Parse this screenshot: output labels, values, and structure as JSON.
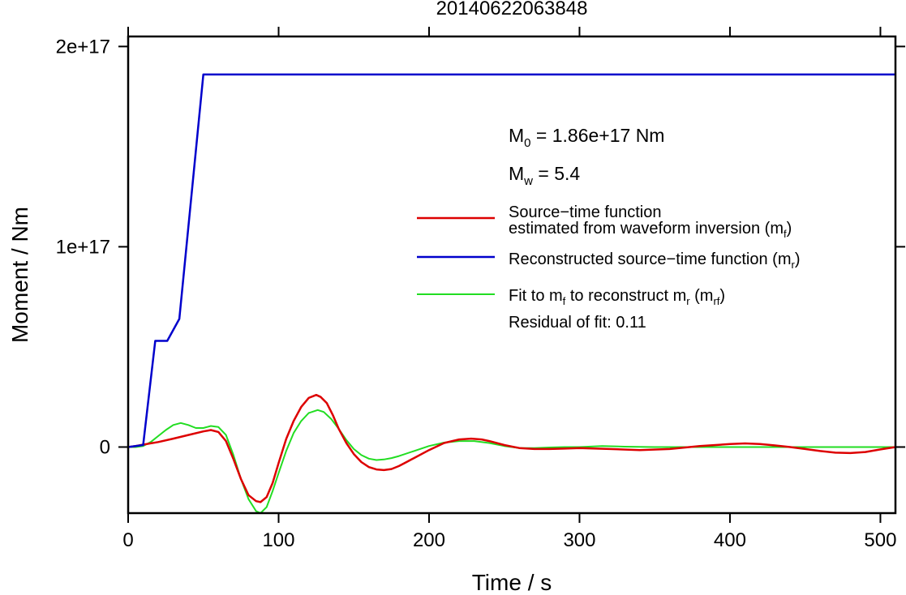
{
  "chart_data": {
    "type": "line",
    "title": "20140622063848",
    "xlabel": "Time / s",
    "ylabel": "Moment / Nm",
    "xlim": [
      0,
      510
    ],
    "ylim": [
      -3.3e+16,
      2.05e+17
    ],
    "x_ticks": [
      0,
      100,
      200,
      300,
      400,
      500
    ],
    "x_tick_labels": [
      "0",
      "100",
      "200",
      "300",
      "400",
      "500"
    ],
    "y_ticks": [
      0,
      1e+17,
      2e+17
    ],
    "y_tick_labels": [
      "0",
      "1e+17",
      "2e+17"
    ],
    "grid": false,
    "legend_position": "right",
    "annotations": {
      "m0_label": "M",
      "m0_sub": "0",
      "m0_value": " = 1.86e+17 Nm",
      "mw_label": "M",
      "mw_sub": "w",
      "mw_value": " = 5.4",
      "residual": "Residual of fit: 0.11"
    },
    "legend": [
      {
        "line1": "Source−time function",
        "line2": "estimated from waveform inversion (m",
        "sub": "f",
        "tail": ")",
        "color": "#dd0000",
        "width": 2.5
      },
      {
        "line1": "Reconstructed source−time function (m",
        "sub": "r",
        "tail": ")",
        "color": "#0000cc",
        "width": 2.5
      },
      {
        "line1": "Fit to m",
        "sub": "f",
        "mid": " to reconstruct m",
        "sub2": "r",
        "mid2": " (m",
        "sub3": "rf",
        "tail": ")",
        "color": "#22dd22",
        "width": 2
      }
    ],
    "series": [
      {
        "color": "#dd0000",
        "width": 2.5,
        "x": [
          0,
          5,
          10,
          20,
          30,
          40,
          50,
          55,
          60,
          65,
          70,
          75,
          80,
          85,
          88,
          92,
          96,
          100,
          105,
          110,
          115,
          120,
          125,
          128,
          132,
          136,
          140,
          145,
          150,
          155,
          160,
          165,
          170,
          175,
          180,
          185,
          190,
          200,
          210,
          220,
          228,
          235,
          240,
          250,
          260,
          270,
          280,
          290,
          300,
          320,
          340,
          360,
          380,
          400,
          410,
          420,
          430,
          440,
          450,
          460,
          470,
          480,
          490,
          500,
          510
        ],
        "y": [
          0,
          0.05,
          0.12,
          0.25,
          0.42,
          0.6,
          0.78,
          0.85,
          0.75,
          0.3,
          -0.6,
          -1.6,
          -2.4,
          -2.7,
          -2.75,
          -2.5,
          -1.8,
          -0.8,
          0.4,
          1.3,
          2.0,
          2.45,
          2.6,
          2.5,
          2.2,
          1.6,
          0.9,
          0.2,
          -0.35,
          -0.75,
          -1.0,
          -1.12,
          -1.15,
          -1.1,
          -0.95,
          -0.75,
          -0.55,
          -0.15,
          0.2,
          0.38,
          0.42,
          0.38,
          0.3,
          0.1,
          -0.05,
          -0.1,
          -0.1,
          -0.08,
          -0.05,
          -0.1,
          -0.15,
          -0.1,
          0.05,
          0.15,
          0.18,
          0.15,
          0.08,
          0.0,
          -0.1,
          -0.2,
          -0.28,
          -0.3,
          -0.25,
          -0.12,
          0.0
        ]
      },
      {
        "color": "#0000cc",
        "width": 2.5,
        "x": [
          0,
          10,
          18,
          26,
          34,
          50,
          510
        ],
        "y": [
          0,
          0.1,
          5.3,
          5.3,
          6.4,
          18.6,
          18.6
        ]
      },
      {
        "color": "#22dd22",
        "width": 2,
        "x": [
          0,
          5,
          10,
          15,
          20,
          25,
          30,
          35,
          40,
          45,
          50,
          55,
          60,
          65,
          70,
          75,
          80,
          85,
          88,
          92,
          96,
          100,
          105,
          110,
          115,
          120,
          126,
          130,
          135,
          140,
          145,
          150,
          155,
          160,
          165,
          170,
          175,
          180,
          190,
          200,
          210,
          220,
          230,
          240,
          250,
          260,
          270,
          280,
          290,
          300,
          315,
          330,
          350,
          380,
          420,
          460,
          510
        ],
        "y": [
          0,
          0.0,
          0.05,
          0.25,
          0.55,
          0.85,
          1.1,
          1.2,
          1.1,
          0.95,
          0.95,
          1.05,
          1.0,
          0.6,
          -0.4,
          -1.6,
          -2.6,
          -3.2,
          -3.3,
          -3.0,
          -2.2,
          -1.3,
          -0.2,
          0.7,
          1.3,
          1.7,
          1.85,
          1.75,
          1.4,
          0.9,
          0.35,
          -0.1,
          -0.4,
          -0.58,
          -0.65,
          -0.62,
          -0.55,
          -0.45,
          -0.2,
          0.05,
          0.22,
          0.3,
          0.3,
          0.2,
          0.05,
          -0.05,
          -0.05,
          -0.02,
          0.0,
          0.0,
          0.05,
          0.02,
          0.0,
          0.0,
          0.0,
          0.0,
          0.0
        ]
      }
    ]
  }
}
